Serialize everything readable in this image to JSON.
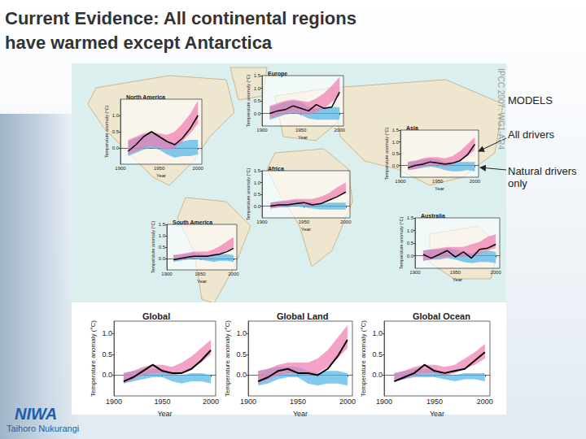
{
  "page": {
    "title_lines": [
      "Current Evidence: All continental regions",
      "have warmed except Antarctica"
    ],
    "legend_heading": "MODELS",
    "legend_items": [
      "All drivers",
      "Natural drivers only"
    ],
    "source": "IPCC 2007: WG1-AR4",
    "logo": "NIWA",
    "logo_subtitle": "Taihoro Nukurangi"
  },
  "chart_data": [
    {
      "type": "line",
      "title": "North America",
      "x_label": "Year",
      "y_label": "Temperature anomaly (°C)",
      "x": [
        1910,
        1920,
        1930,
        1940,
        1950,
        1960,
        1970,
        1980,
        1990,
        2000
      ],
      "xlim": [
        1900,
        2005
      ],
      "xticks": [
        1900,
        1950,
        2000
      ],
      "ylim": [
        -0.5,
        1.5
      ],
      "yticks": [
        {
          "value": 0,
          "label": "0.0"
        },
        {
          "value": 0.5,
          "label": "0.5"
        },
        {
          "value": 1,
          "label": "1.0"
        }
      ],
      "grid": false,
      "series": [
        {
          "name": "Natural drivers only",
          "type": "band",
          "color": "#4fb3e8",
          "low": [
            -0.25,
            -0.15,
            -0.05,
            0.0,
            -0.05,
            -0.2,
            -0.3,
            -0.25,
            -0.25,
            -0.2
          ],
          "high": [
            0.2,
            0.3,
            0.4,
            0.45,
            0.4,
            0.2,
            0.15,
            0.2,
            0.25,
            0.25
          ]
        },
        {
          "name": "All drivers",
          "type": "band",
          "color": "#f07ab0",
          "low": [
            -0.2,
            -0.1,
            0.0,
            0.05,
            0.0,
            -0.05,
            0.0,
            0.2,
            0.45,
            0.75
          ],
          "high": [
            0.25,
            0.35,
            0.45,
            0.5,
            0.45,
            0.4,
            0.5,
            0.75,
            1.05,
            1.45
          ]
        },
        {
          "type": "line",
          "color": "#000000",
          "values": [
            -0.1,
            0.1,
            0.35,
            0.5,
            0.35,
            0.2,
            0.1,
            0.3,
            0.6,
            1.0
          ]
        }
      ]
    },
    {
      "type": "line",
      "title": "Europe",
      "x_label": "Year",
      "y_label": "Temperature anomaly (°C)",
      "x": [
        1910,
        1920,
        1930,
        1940,
        1950,
        1960,
        1970,
        1980,
        1990,
        2000
      ],
      "xlim": [
        1900,
        2005
      ],
      "xticks": [
        1900,
        1950,
        2000
      ],
      "ylim": [
        -0.5,
        1.5
      ],
      "yticks": [
        {
          "value": 0,
          "label": "0.0"
        },
        {
          "value": 0.5,
          "label": "0.5"
        },
        {
          "value": 1,
          "label": "1.0"
        },
        {
          "value": 1.5,
          "label": "1.5"
        }
      ],
      "grid": false,
      "series": [
        {
          "name": "Natural drivers only",
          "type": "band",
          "color": "#4fb3e8",
          "low": [
            -0.25,
            -0.15,
            -0.05,
            0.0,
            -0.05,
            -0.2,
            -0.25,
            -0.25,
            -0.25,
            -0.25
          ],
          "high": [
            0.25,
            0.35,
            0.45,
            0.5,
            0.45,
            0.25,
            0.2,
            0.25,
            0.25,
            0.25
          ]
        },
        {
          "name": "All drivers",
          "type": "band",
          "color": "#f07ab0",
          "low": [
            -0.2,
            -0.1,
            0.0,
            0.05,
            0.0,
            -0.05,
            0.05,
            0.2,
            0.45,
            0.7
          ],
          "high": [
            0.3,
            0.4,
            0.5,
            0.55,
            0.5,
            0.45,
            0.6,
            0.8,
            1.1,
            1.45
          ]
        },
        {
          "type": "line",
          "color": "#000000",
          "values": [
            0.0,
            0.1,
            0.15,
            0.3,
            0.2,
            0.1,
            0.35,
            0.2,
            0.25,
            0.85
          ]
        }
      ]
    },
    {
      "type": "line",
      "title": "Asia",
      "x_label": "Year",
      "y_label": "Temperature anomaly (°C)",
      "x": [
        1910,
        1920,
        1930,
        1940,
        1950,
        1960,
        1970,
        1980,
        1990,
        2000
      ],
      "xlim": [
        1900,
        2005
      ],
      "xticks": [
        1900,
        1950,
        2000
      ],
      "ylim": [
        -0.5,
        1.5
      ],
      "yticks": [
        {
          "value": 0,
          "label": "0.0"
        },
        {
          "value": 0.5,
          "label": "0.5"
        },
        {
          "value": 1,
          "label": "1.0"
        },
        {
          "value": 1.5,
          "label": "1.5"
        }
      ],
      "grid": false,
      "series": [
        {
          "name": "Natural drivers only",
          "type": "band",
          "color": "#4fb3e8",
          "low": [
            -0.2,
            -0.15,
            -0.1,
            -0.05,
            -0.1,
            -0.2,
            -0.25,
            -0.25,
            -0.2,
            -0.25
          ],
          "high": [
            0.15,
            0.2,
            0.25,
            0.3,
            0.25,
            0.15,
            0.1,
            0.15,
            0.15,
            0.15
          ]
        },
        {
          "name": "All drivers",
          "type": "band",
          "color": "#f07ab0",
          "low": [
            -0.2,
            -0.15,
            -0.05,
            0.0,
            0.0,
            -0.05,
            0.05,
            0.2,
            0.4,
            0.65
          ],
          "high": [
            0.15,
            0.2,
            0.3,
            0.35,
            0.35,
            0.3,
            0.4,
            0.6,
            0.9,
            1.2
          ]
        },
        {
          "type": "line",
          "color": "#000000",
          "values": [
            -0.1,
            0.0,
            0.05,
            0.15,
            0.1,
            0.05,
            0.1,
            0.2,
            0.45,
            0.9
          ]
        }
      ]
    },
    {
      "type": "line",
      "title": "Africa",
      "x_label": "Year",
      "y_label": "Temperature anomaly (°C)",
      "x": [
        1910,
        1920,
        1930,
        1940,
        1950,
        1960,
        1970,
        1980,
        1990,
        2000
      ],
      "xlim": [
        1900,
        2005
      ],
      "xticks": [
        1900,
        1950,
        2000
      ],
      "ylim": [
        -0.5,
        1.5
      ],
      "yticks": [
        {
          "value": 0,
          "label": "0.0"
        },
        {
          "value": 0.5,
          "label": "0.5"
        },
        {
          "value": 1,
          "label": "1.0"
        },
        {
          "value": 1.5,
          "label": "1.5"
        }
      ],
      "grid": false,
      "series": [
        {
          "name": "Natural drivers only",
          "type": "band",
          "color": "#4fb3e8",
          "low": [
            -0.1,
            -0.05,
            -0.05,
            0.0,
            -0.05,
            -0.1,
            -0.15,
            -0.15,
            -0.15,
            -0.15
          ],
          "high": [
            0.15,
            0.2,
            0.2,
            0.25,
            0.2,
            0.15,
            0.1,
            0.15,
            0.15,
            0.15
          ]
        },
        {
          "name": "All drivers",
          "type": "band",
          "color": "#f07ab0",
          "low": [
            -0.1,
            -0.05,
            0.0,
            0.05,
            0.05,
            0.0,
            0.1,
            0.25,
            0.4,
            0.55
          ],
          "high": [
            0.15,
            0.2,
            0.25,
            0.3,
            0.3,
            0.3,
            0.4,
            0.55,
            0.8,
            1.0
          ]
        },
        {
          "type": "line",
          "color": "#000000",
          "values": [
            0.0,
            0.05,
            0.05,
            0.1,
            0.15,
            0.05,
            0.1,
            0.25,
            0.4,
            0.6
          ]
        }
      ]
    },
    {
      "type": "line",
      "title": "South America",
      "x_label": "Year",
      "y_label": "Temperature anomaly (°C)",
      "x": [
        1910,
        1920,
        1930,
        1940,
        1950,
        1960,
        1970,
        1980,
        1990,
        2000
      ],
      "xlim": [
        1900,
        2005
      ],
      "xticks": [
        1900,
        1950,
        2000
      ],
      "ylim": [
        -0.5,
        1.5
      ],
      "yticks": [
        {
          "value": 0,
          "label": "0.0"
        },
        {
          "value": 0.5,
          "label": "0.5"
        },
        {
          "value": 1,
          "label": "1.0"
        },
        {
          "value": 1.5,
          "label": "1.5"
        }
      ],
      "grid": false,
      "series": [
        {
          "name": "Natural drivers only",
          "type": "band",
          "color": "#4fb3e8",
          "low": [
            -0.15,
            -0.1,
            -0.05,
            0.0,
            -0.05,
            -0.1,
            -0.15,
            -0.1,
            -0.1,
            -0.15
          ],
          "high": [
            0.15,
            0.15,
            0.2,
            0.25,
            0.2,
            0.15,
            0.15,
            0.2,
            0.2,
            0.15
          ]
        },
        {
          "name": "All drivers",
          "type": "band",
          "color": "#f07ab0",
          "low": [
            -0.1,
            -0.05,
            0.0,
            0.05,
            0.05,
            0.05,
            0.1,
            0.2,
            0.35,
            0.5
          ],
          "high": [
            0.15,
            0.2,
            0.25,
            0.3,
            0.3,
            0.3,
            0.4,
            0.55,
            0.75,
            0.95
          ]
        },
        {
          "type": "line",
          "color": "#000000",
          "values": [
            -0.05,
            0.0,
            0.05,
            0.1,
            0.1,
            0.1,
            0.15,
            0.2,
            0.3,
            0.45
          ]
        }
      ]
    },
    {
      "type": "line",
      "title": "Australia",
      "x_label": "Year",
      "y_label": "Temperature anomaly (°C)",
      "x": [
        1910,
        1920,
        1930,
        1940,
        1950,
        1960,
        1970,
        1980,
        1990,
        2000
      ],
      "xlim": [
        1900,
        2005
      ],
      "xticks": [
        1900,
        1950,
        2000
      ],
      "ylim": [
        -0.5,
        1.5
      ],
      "yticks": [
        {
          "value": 0,
          "label": "0.0"
        },
        {
          "value": 0.5,
          "label": "0.5"
        },
        {
          "value": 1,
          "label": "1.0"
        },
        {
          "value": 1.5,
          "label": "1.5"
        }
      ],
      "grid": false,
      "series": [
        {
          "name": "Natural drivers only",
          "type": "band",
          "color": "#4fb3e8",
          "low": [
            -0.2,
            -0.15,
            -0.15,
            -0.1,
            -0.15,
            -0.25,
            -0.3,
            -0.25,
            -0.25,
            -0.3
          ],
          "high": [
            0.2,
            0.25,
            0.25,
            0.3,
            0.25,
            0.15,
            0.1,
            0.15,
            0.2,
            0.15
          ]
        },
        {
          "name": "All drivers",
          "type": "band",
          "color": "#f07ab0",
          "low": [
            -0.2,
            -0.15,
            -0.1,
            -0.05,
            -0.05,
            -0.05,
            0.0,
            0.1,
            0.2,
            0.3
          ],
          "high": [
            0.2,
            0.25,
            0.3,
            0.35,
            0.35,
            0.35,
            0.45,
            0.55,
            0.75,
            0.85
          ]
        },
        {
          "type": "line",
          "color": "#000000",
          "values": [
            0.05,
            -0.1,
            0.05,
            0.2,
            -0.05,
            0.15,
            -0.1,
            0.25,
            0.3,
            0.45
          ]
        }
      ]
    },
    {
      "type": "line",
      "title": "Global",
      "x_label": "Year",
      "y_label": "Temperature anomaly (°C)",
      "x": [
        1910,
        1920,
        1930,
        1940,
        1950,
        1960,
        1970,
        1980,
        1990,
        2000
      ],
      "xlim": [
        1900,
        2005
      ],
      "xticks": [
        1900,
        1950,
        2000
      ],
      "ylim": [
        -0.5,
        1.3
      ],
      "yticks": [
        {
          "value": 0,
          "label": "0.0"
        },
        {
          "value": 0.5,
          "label": "0.5"
        },
        {
          "value": 1,
          "label": "1.0"
        }
      ],
      "grid": false,
      "series": [
        {
          "name": "Natural drivers only",
          "type": "band",
          "color": "#4fb3e8",
          "low": [
            -0.2,
            -0.15,
            -0.1,
            -0.05,
            -0.05,
            -0.15,
            -0.2,
            -0.15,
            -0.15,
            -0.2
          ],
          "high": [
            0.05,
            0.1,
            0.15,
            0.15,
            0.15,
            0.05,
            0.0,
            0.05,
            0.05,
            0.0
          ]
        },
        {
          "name": "All drivers",
          "type": "band",
          "color": "#f07ab0",
          "low": [
            -0.2,
            -0.1,
            0.0,
            0.05,
            0.05,
            0.0,
            0.05,
            0.15,
            0.3,
            0.5
          ],
          "high": [
            0.05,
            0.1,
            0.2,
            0.25,
            0.25,
            0.2,
            0.3,
            0.45,
            0.65,
            0.85
          ]
        },
        {
          "type": "line",
          "color": "#000000",
          "values": [
            -0.15,
            -0.05,
            0.1,
            0.25,
            0.1,
            0.05,
            0.05,
            0.15,
            0.35,
            0.6
          ]
        }
      ]
    },
    {
      "type": "line",
      "title": "Global Land",
      "x_label": "Year",
      "y_label": "Temperature anomaly (°C)",
      "x": [
        1910,
        1920,
        1930,
        1940,
        1950,
        1960,
        1970,
        1980,
        1990,
        2000
      ],
      "xlim": [
        1900,
        2005
      ],
      "xticks": [
        1900,
        1950,
        2000
      ],
      "ylim": [
        -0.5,
        1.3
      ],
      "yticks": [
        {
          "value": 0,
          "label": "0.0"
        },
        {
          "value": 0.5,
          "label": "0.5"
        },
        {
          "value": 1,
          "label": "1.0"
        }
      ],
      "grid": false,
      "series": [
        {
          "name": "Natural drivers only",
          "type": "band",
          "color": "#4fb3e8",
          "low": [
            -0.25,
            -0.2,
            -0.1,
            -0.05,
            -0.05,
            -0.2,
            -0.25,
            -0.2,
            -0.2,
            -0.25
          ],
          "high": [
            0.1,
            0.15,
            0.2,
            0.2,
            0.2,
            0.1,
            0.05,
            0.1,
            0.1,
            0.05
          ]
        },
        {
          "name": "All drivers",
          "type": "band",
          "color": "#f07ab0",
          "low": [
            -0.2,
            -0.1,
            0.0,
            0.05,
            0.05,
            0.0,
            0.05,
            0.2,
            0.4,
            0.65
          ],
          "high": [
            0.1,
            0.15,
            0.25,
            0.3,
            0.3,
            0.3,
            0.4,
            0.6,
            0.9,
            1.2
          ]
        },
        {
          "type": "line",
          "color": "#000000",
          "values": [
            -0.15,
            -0.05,
            0.1,
            0.15,
            0.05,
            0.05,
            0.0,
            0.15,
            0.45,
            0.85
          ]
        }
      ]
    },
    {
      "type": "line",
      "title": "Global Ocean",
      "x_label": "Year",
      "y_label": "Temperature anomaly (°C)",
      "x": [
        1910,
        1920,
        1930,
        1940,
        1950,
        1960,
        1970,
        1980,
        1990,
        2000
      ],
      "xlim": [
        1900,
        2005
      ],
      "xticks": [
        1900,
        1950,
        2000
      ],
      "ylim": [
        -0.5,
        1.3
      ],
      "yticks": [
        {
          "value": 0,
          "label": "0.0"
        },
        {
          "value": 0.5,
          "label": "0.5"
        },
        {
          "value": 1,
          "label": "1.0"
        }
      ],
      "grid": false,
      "series": [
        {
          "name": "Natural drivers only",
          "type": "band",
          "color": "#4fb3e8",
          "low": [
            -0.15,
            -0.1,
            -0.05,
            -0.05,
            -0.05,
            -0.1,
            -0.15,
            -0.1,
            -0.1,
            -0.15
          ],
          "high": [
            0.05,
            0.1,
            0.15,
            0.15,
            0.15,
            0.05,
            0.0,
            0.05,
            0.05,
            0.05
          ]
        },
        {
          "name": "All drivers",
          "type": "band",
          "color": "#f07ab0",
          "low": [
            -0.15,
            -0.1,
            0.0,
            0.05,
            0.05,
            0.0,
            0.05,
            0.15,
            0.25,
            0.4
          ],
          "high": [
            0.05,
            0.1,
            0.2,
            0.25,
            0.25,
            0.2,
            0.25,
            0.4,
            0.55,
            0.75
          ]
        },
        {
          "type": "line",
          "color": "#000000",
          "values": [
            -0.15,
            -0.05,
            0.05,
            0.25,
            0.1,
            0.05,
            0.1,
            0.15,
            0.35,
            0.55
          ]
        }
      ]
    }
  ]
}
